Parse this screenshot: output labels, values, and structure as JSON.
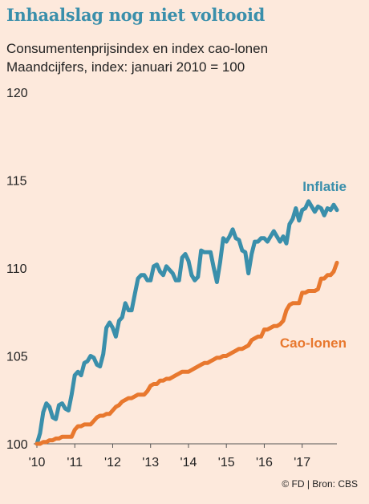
{
  "title": "Inhaalslag nog niet voltooid",
  "subtitle_1": "Consumentenprijsindex en index cao-lonen",
  "subtitle_2": "Maandcijfers, index: januari 2010 = 100",
  "credit": "© FD | Bron: CBS",
  "colors": {
    "inflatie": "#3a8fab",
    "cao": "#e8782e",
    "background": "#fde9dc"
  },
  "chart_data": {
    "type": "line",
    "ylim": [
      100,
      120
    ],
    "yticks": [
      100,
      105,
      110,
      115,
      120
    ],
    "xlim": [
      2010,
      2018
    ],
    "xticks": [
      {
        "x": 2010,
        "label": "'10"
      },
      {
        "x": 2011,
        "label": "'11"
      },
      {
        "x": 2012,
        "label": "'12"
      },
      {
        "x": 2013,
        "label": "'13"
      },
      {
        "x": 2014,
        "label": "'14"
      },
      {
        "x": 2015,
        "label": "'15"
      },
      {
        "x": 2016,
        "label": "'16"
      },
      {
        "x": 2017,
        "label": "'17"
      }
    ],
    "series": [
      {
        "name": "Inflatie",
        "x": [
          2010.0,
          2010.083,
          2010.167,
          2010.25,
          2010.333,
          2010.417,
          2010.5,
          2010.583,
          2010.667,
          2010.75,
          2010.833,
          2010.917,
          2011.0,
          2011.083,
          2011.167,
          2011.25,
          2011.333,
          2011.417,
          2011.5,
          2011.583,
          2011.667,
          2011.75,
          2011.833,
          2011.917,
          2012.0,
          2012.083,
          2012.167,
          2012.25,
          2012.333,
          2012.417,
          2012.5,
          2012.583,
          2012.667,
          2012.75,
          2012.833,
          2012.917,
          2013.0,
          2013.083,
          2013.167,
          2013.25,
          2013.333,
          2013.417,
          2013.5,
          2013.583,
          2013.667,
          2013.75,
          2013.833,
          2013.917,
          2014.0,
          2014.083,
          2014.167,
          2014.25,
          2014.333,
          2014.417,
          2014.5,
          2014.583,
          2014.667,
          2014.75,
          2014.833,
          2014.917,
          2015.0,
          2015.083,
          2015.167,
          2015.25,
          2015.333,
          2015.417,
          2015.5,
          2015.583,
          2015.667,
          2015.75,
          2015.833,
          2015.917,
          2016.0,
          2016.083,
          2016.167,
          2016.25,
          2016.333,
          2016.417,
          2016.5,
          2016.583,
          2016.667,
          2016.75,
          2016.833,
          2016.917,
          2017.0,
          2017.083,
          2017.167,
          2017.25,
          2017.333,
          2017.417,
          2017.5,
          2017.583,
          2017.667,
          2017.75,
          2017.833,
          2017.917
        ],
        "values": [
          100.0,
          100.6,
          101.8,
          102.3,
          102.1,
          101.5,
          101.4,
          102.2,
          102.3,
          102.0,
          101.9,
          102.8,
          103.9,
          104.1,
          103.9,
          104.6,
          104.7,
          105.0,
          104.9,
          104.5,
          104.4,
          105.1,
          106.6,
          106.9,
          106.6,
          106.1,
          107.0,
          107.2,
          108.0,
          107.6,
          107.6,
          108.5,
          109.4,
          109.6,
          109.6,
          109.3,
          109.3,
          110.1,
          110.2,
          109.8,
          109.6,
          110.1,
          109.9,
          109.7,
          109.3,
          109.3,
          110.6,
          110.8,
          110.4,
          109.6,
          109.3,
          109.5,
          111.0,
          110.9,
          110.9,
          110.9,
          110.0,
          109.2,
          110.3,
          111.7,
          111.5,
          111.8,
          112.2,
          111.7,
          111.6,
          111.0,
          110.9,
          109.7,
          110.8,
          111.5,
          111.5,
          111.7,
          111.7,
          111.5,
          111.8,
          112.1,
          111.8,
          111.5,
          111.8,
          111.4,
          112.5,
          112.8,
          113.4,
          112.7,
          113.3,
          113.4,
          113.8,
          113.5,
          113.2,
          113.5,
          113.4,
          113.0,
          113.4,
          113.3,
          113.6,
          113.3
        ]
      },
      {
        "name": "Cao-lonen",
        "x": [
          2010.0,
          2010.083,
          2010.167,
          2010.25,
          2010.333,
          2010.417,
          2010.5,
          2010.583,
          2010.667,
          2010.75,
          2010.833,
          2010.917,
          2011.0,
          2011.083,
          2011.167,
          2011.25,
          2011.333,
          2011.417,
          2011.5,
          2011.583,
          2011.667,
          2011.75,
          2011.833,
          2011.917,
          2012.0,
          2012.083,
          2012.167,
          2012.25,
          2012.333,
          2012.417,
          2012.5,
          2012.583,
          2012.667,
          2012.75,
          2012.833,
          2012.917,
          2013.0,
          2013.083,
          2013.167,
          2013.25,
          2013.333,
          2013.417,
          2013.5,
          2013.583,
          2013.667,
          2013.75,
          2013.833,
          2013.917,
          2014.0,
          2014.083,
          2014.167,
          2014.25,
          2014.333,
          2014.417,
          2014.5,
          2014.583,
          2014.667,
          2014.75,
          2014.833,
          2014.917,
          2015.0,
          2015.083,
          2015.167,
          2015.25,
          2015.333,
          2015.417,
          2015.5,
          2015.583,
          2015.667,
          2015.75,
          2015.833,
          2015.917,
          2016.0,
          2016.083,
          2016.167,
          2016.25,
          2016.333,
          2016.417,
          2016.5,
          2016.583,
          2016.667,
          2016.75,
          2016.833,
          2016.917,
          2017.0,
          2017.083,
          2017.167,
          2017.25,
          2017.333,
          2017.417,
          2017.5,
          2017.583,
          2017.667,
          2017.75,
          2017.833,
          2017.917
        ],
        "values": [
          100.0,
          100.0,
          100.1,
          100.1,
          100.2,
          100.2,
          100.3,
          100.3,
          100.4,
          100.4,
          100.4,
          100.4,
          100.8,
          101.0,
          101.0,
          101.1,
          101.1,
          101.1,
          101.3,
          101.5,
          101.6,
          101.6,
          101.7,
          101.7,
          101.9,
          102.1,
          102.2,
          102.4,
          102.5,
          102.6,
          102.6,
          102.7,
          102.8,
          102.8,
          102.8,
          103.0,
          103.3,
          103.4,
          103.4,
          103.6,
          103.6,
          103.7,
          103.7,
          103.8,
          103.9,
          104.0,
          104.1,
          104.1,
          104.1,
          104.2,
          104.3,
          104.4,
          104.5,
          104.6,
          104.6,
          104.7,
          104.8,
          104.9,
          104.9,
          105.0,
          105.0,
          105.1,
          105.2,
          105.3,
          105.4,
          105.4,
          105.5,
          105.6,
          105.9,
          106.0,
          106.1,
          106.1,
          106.5,
          106.5,
          106.6,
          106.7,
          106.7,
          106.8,
          107.0,
          107.6,
          107.9,
          108.0,
          108.0,
          108.0,
          108.6,
          108.6,
          108.7,
          108.7,
          108.7,
          108.8,
          109.4,
          109.4,
          109.6,
          109.6,
          109.8,
          110.3
        ]
      }
    ]
  }
}
